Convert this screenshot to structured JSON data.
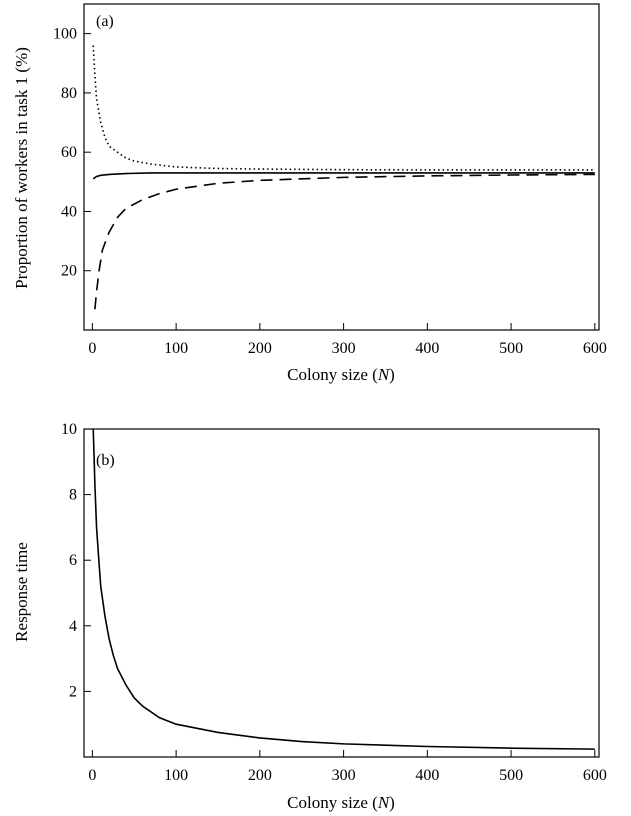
{
  "chart_data": [
    {
      "type": "line",
      "panel_label": "(a)",
      "xlabel": "Colony size (N)",
      "xlabel_parts": [
        "Colony size (",
        "N",
        ")"
      ],
      "ylabel": "Proportion of workers in task 1 (%)",
      "xlim": [
        -10,
        605
      ],
      "ylim": [
        0,
        110
      ],
      "xticks": [
        0,
        100,
        200,
        300,
        400,
        500,
        600
      ],
      "yticks": [
        20,
        40,
        60,
        80,
        100
      ],
      "series": [
        {
          "style": "dotted",
          "x": [
            1,
            3,
            5,
            10,
            15,
            20,
            30,
            40,
            50,
            70,
            100,
            150,
            200,
            300,
            400,
            500,
            600
          ],
          "y": [
            96,
            86,
            78,
            70,
            65,
            62,
            60,
            58,
            57,
            56,
            55,
            54.5,
            54.3,
            54.1,
            54.0,
            54.0,
            54.0
          ]
        },
        {
          "style": "solid",
          "x": [
            1,
            5,
            10,
            20,
            40,
            70,
            100,
            200,
            300,
            400,
            500,
            600
          ],
          "y": [
            51,
            51.8,
            52.2,
            52.5,
            52.8,
            53,
            53,
            53,
            53,
            53,
            53,
            53
          ]
        },
        {
          "style": "dashed",
          "x": [
            3,
            5,
            8,
            12,
            20,
            30,
            40,
            60,
            80,
            100,
            150,
            200,
            300,
            400,
            500,
            600
          ],
          "y": [
            7,
            13,
            20,
            27,
            33,
            38,
            41,
            44,
            46,
            47.5,
            49.5,
            50.5,
            51.5,
            52,
            52.3,
            52.5
          ]
        }
      ]
    },
    {
      "type": "line",
      "panel_label": "(b)",
      "xlabel": "Colony size (N)",
      "xlabel_parts": [
        "Colony size (",
        "N",
        ")"
      ],
      "ylabel": "Response time",
      "xlim": [
        -10,
        605
      ],
      "ylim": [
        0,
        10
      ],
      "xticks": [
        0,
        100,
        200,
        300,
        400,
        500,
        600
      ],
      "yticks": [
        2,
        4,
        6,
        8,
        10
      ],
      "series": [
        {
          "style": "solid",
          "x": [
            1,
            2,
            3,
            5,
            8,
            10,
            15,
            20,
            25,
            30,
            40,
            50,
            60,
            80,
            100,
            150,
            200,
            250,
            300,
            400,
            500,
            600
          ],
          "y": [
            10,
            9.2,
            8.3,
            7.0,
            5.9,
            5.2,
            4.3,
            3.6,
            3.1,
            2.7,
            2.2,
            1.8,
            1.55,
            1.2,
            1.0,
            0.75,
            0.58,
            0.47,
            0.4,
            0.32,
            0.27,
            0.24
          ]
        }
      ]
    }
  ]
}
